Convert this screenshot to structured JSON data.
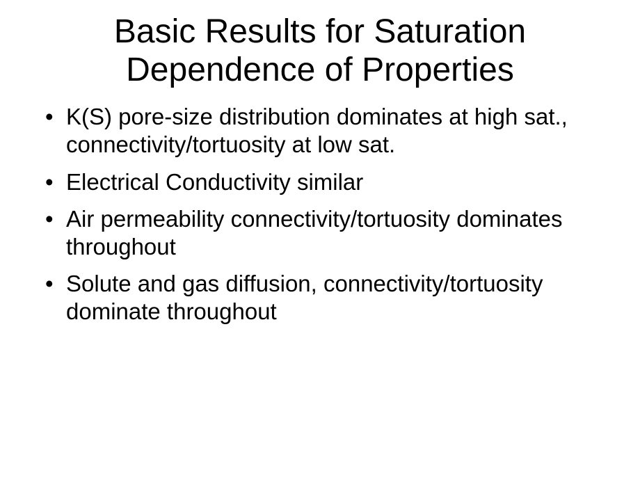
{
  "slide": {
    "title": "Basic Results for Saturation Dependence of Properties",
    "title_fontsize": 48,
    "title_color": "#000000",
    "bullets": [
      "K(S) pore-size distribution dominates at high sat., connectivity/tortuosity at low sat.",
      "Electrical Conductivity similar",
      "Air permeability connectivity/tortuosity dominates throughout",
      "Solute and gas diffusion, connectivity/tortuosity dominate throughout"
    ],
    "bullet_fontsize": 33,
    "bullet_color": "#000000",
    "background_color": "#ffffff",
    "font_family": "Arial"
  }
}
